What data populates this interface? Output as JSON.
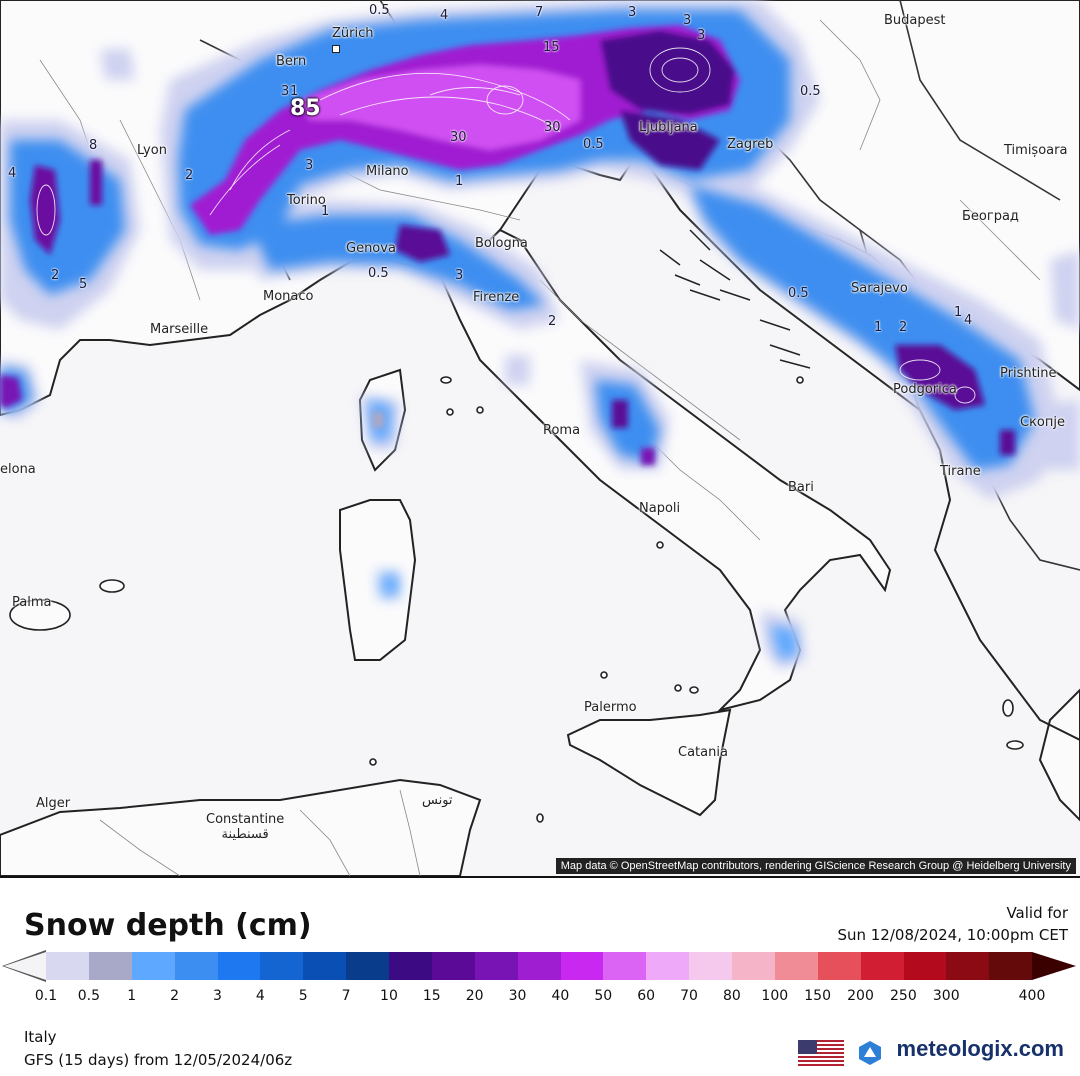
{
  "map": {
    "attribution": "Map data © OpenStreetMap contributors, rendering GIScience Research Group @ Heidelberg University",
    "cities": [
      {
        "name": "Zürich",
        "icon": "city-marker"
      },
      {
        "name": "Bern",
        "icon": "city-marker"
      },
      {
        "name": "Lyon",
        "icon": "city-marker"
      },
      {
        "name": "Milano",
        "icon": "city-marker"
      },
      {
        "name": "Torino",
        "icon": "city-marker"
      },
      {
        "name": "Genova",
        "icon": "city-marker"
      },
      {
        "name": "Bologna",
        "icon": "city-marker"
      },
      {
        "name": "Monaco",
        "icon": "city-marker"
      },
      {
        "name": "Marseille",
        "icon": "city-marker"
      },
      {
        "name": "Firenze",
        "icon": "city-marker"
      },
      {
        "name": "Ljubljana",
        "icon": "city-marker"
      },
      {
        "name": "Zagreb",
        "icon": "city-marker"
      },
      {
        "name": "Budapest",
        "icon": "city-marker"
      },
      {
        "name": "Timișoara",
        "icon": "city-marker"
      },
      {
        "name": "Београд",
        "icon": "city-marker"
      },
      {
        "name": "Sarajevo",
        "icon": "city-marker"
      },
      {
        "name": "Podgorica",
        "icon": "city-marker"
      },
      {
        "name": "Prishtine",
        "icon": "city-marker"
      },
      {
        "name": "Скопје",
        "icon": "city-marker"
      },
      {
        "name": "Tirane",
        "icon": "city-marker"
      },
      {
        "name": "Roma",
        "icon": "city-marker"
      },
      {
        "name": "Bari",
        "icon": "city-marker"
      },
      {
        "name": "Napoli",
        "icon": "city-marker"
      },
      {
        "name": "Palermo",
        "icon": "city-marker"
      },
      {
        "name": "Catania",
        "icon": "city-marker"
      },
      {
        "name": "Palma",
        "icon": "city-marker"
      },
      {
        "name": "Alger",
        "icon": "city-marker"
      },
      {
        "name": "Constantine\nقسنطينة",
        "icon": "city-marker"
      },
      {
        "name": "تونس",
        "icon": "city-marker"
      },
      {
        "name": "elona",
        "icon": "city-marker"
      }
    ],
    "contour_labels": [
      "0.5",
      "4",
      "7",
      "3",
      "15",
      "3",
      "3",
      "3",
      "1",
      "85",
      "2",
      "3",
      "30",
      "30",
      "0.5",
      "0.5",
      "1",
      "1",
      "2",
      "5",
      "4",
      "8",
      "2",
      "3",
      "0.5",
      "2",
      "0.5",
      "1",
      "2",
      "4",
      "1"
    ],
    "max_value_label": "85"
  },
  "legend": {
    "title": "Snow depth (cm)",
    "valid_label": "Valid for",
    "valid_time": "Sun 12/08/2024, 10:00pm CET",
    "ticks": [
      "0.1",
      "0.5",
      "1",
      "2",
      "3",
      "4",
      "5",
      "7",
      "10",
      "15",
      "20",
      "30",
      "40",
      "50",
      "60",
      "70",
      "80",
      "100",
      "150",
      "200",
      "250",
      "300",
      "400"
    ],
    "colors": [
      "#d8d8f0",
      "#a8a8c8",
      "#5fa8ff",
      "#3c8ef0",
      "#1e78f0",
      "#1464d2",
      "#0a4fb4",
      "#0a3c8c",
      "#3c0a82",
      "#5a0a96",
      "#7814b4",
      "#a01ed2",
      "#c828f0",
      "#dc64f5",
      "#eeaaf8",
      "#f5c8ee",
      "#f5b4c8",
      "#f08c96",
      "#e6505a",
      "#d21e32",
      "#b40a1e",
      "#8c0a14",
      "#640a0a"
    ],
    "region": "Italy",
    "model_run": "GFS (15 days) from 12/05/2024/06z",
    "brand": "meteologix.com",
    "flag_icon": "us-flag-icon"
  }
}
